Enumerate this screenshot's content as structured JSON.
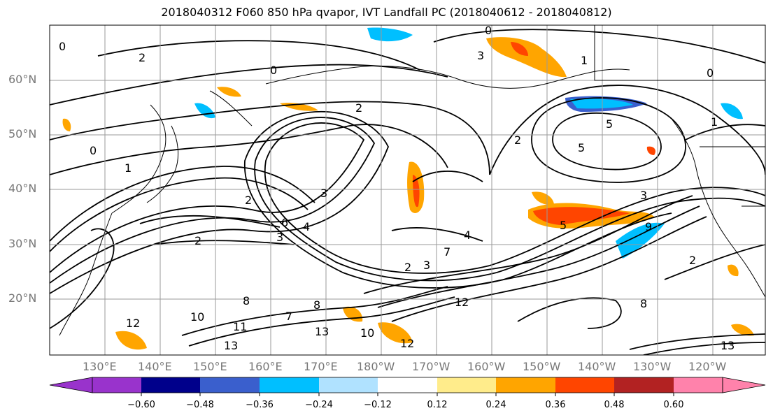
{
  "title": "2018040312 F060 850 hPa qvapor, IVT Landfall PC (2018040612 - 2018040812)",
  "lat_labels": [
    "60°N",
    "50°N",
    "40°N",
    "30°N",
    "20°N"
  ],
  "lon_labels": [
    "130°E",
    "140°E",
    "150°E",
    "160°E",
    "170°E",
    "180°W",
    "170°W",
    "160°W",
    "150°W",
    "140°W",
    "130°W",
    "120°W"
  ],
  "colorbar": {
    "ticks": [
      "−0.60",
      "−0.48",
      "−0.36",
      "−0.24",
      "−0.12",
      "0.12",
      "0.24",
      "0.36",
      "0.48",
      "0.60"
    ],
    "colors": [
      "#9933cc",
      "#00008b",
      "#3a5fcd",
      "#00bfff",
      "#b0e2ff",
      "#ffffff",
      "#ffec8b",
      "#ffa500",
      "#ff4500",
      "#b22222",
      "#ff82ab"
    ]
  },
  "contour_labels": [
    "0",
    "0",
    "0",
    "0",
    "0",
    "1",
    "1",
    "1",
    "2",
    "2",
    "2",
    "2",
    "2",
    "2",
    "2",
    "3",
    "3",
    "3",
    "3",
    "3",
    "4",
    "4",
    "5",
    "5",
    "5",
    "6",
    "7",
    "7",
    "8",
    "8",
    "8",
    "9",
    "10",
    "10",
    "11",
    "12",
    "12",
    "12",
    "13",
    "13",
    "13"
  ]
}
